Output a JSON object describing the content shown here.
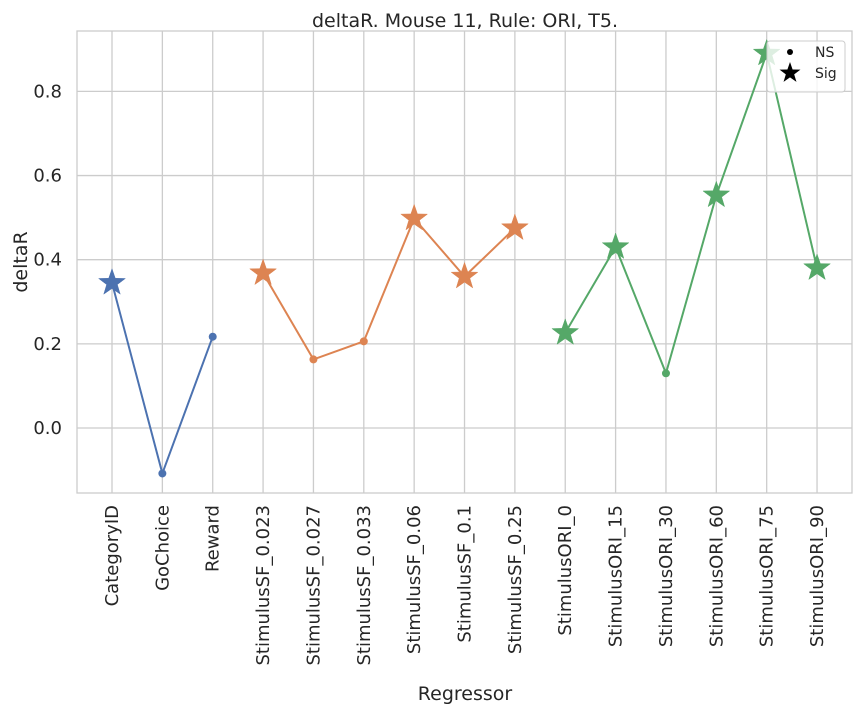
{
  "chart_data": {
    "type": "line",
    "title": "deltaR. Mouse 11, Rule: ORI, T5.",
    "xlabel": "Regressor",
    "ylabel": "deltaR",
    "ylim": [
      -0.155,
      0.935
    ],
    "yticks": [
      "0.0",
      "0.2",
      "0.4",
      "0.6",
      "0.8"
    ],
    "grid": true,
    "categories": [
      "CategoryID",
      "GoChoice",
      "Reward",
      "StimulusSF_0.023",
      "StimulusSF_0.027",
      "StimulusSF_0.033",
      "StimulusSF_0.06",
      "StimulusSF_0.1",
      "StimulusSF_0.25",
      "StimulusORI_0",
      "StimulusORI_15",
      "StimulusORI_30",
      "StimulusORI_60",
      "StimulusORI_75",
      "StimulusORI_90"
    ],
    "series": [
      {
        "color": "#4c72b0",
        "points": [
          {
            "x": "CategoryID",
            "y": 0.345,
            "sig": true
          },
          {
            "x": "GoChoice",
            "y": -0.108,
            "sig": false
          },
          {
            "x": "Reward",
            "y": 0.217,
            "sig": false
          }
        ]
      },
      {
        "color": "#dd8452",
        "points": [
          {
            "x": "StimulusSF_0.023",
            "y": 0.368,
            "sig": true
          },
          {
            "x": "StimulusSF_0.027",
            "y": 0.163,
            "sig": false
          },
          {
            "x": "StimulusSF_0.033",
            "y": 0.206,
            "sig": false
          },
          {
            "x": "StimulusSF_0.06",
            "y": 0.498,
            "sig": true
          },
          {
            "x": "StimulusSF_0.1",
            "y": 0.36,
            "sig": true
          },
          {
            "x": "StimulusSF_0.25",
            "y": 0.475,
            "sig": true
          }
        ]
      },
      {
        "color": "#55a868",
        "points": [
          {
            "x": "StimulusORI_0",
            "y": 0.226,
            "sig": true
          },
          {
            "x": "StimulusORI_15",
            "y": 0.43,
            "sig": true
          },
          {
            "x": "StimulusORI_30",
            "y": 0.13,
            "sig": false
          },
          {
            "x": "StimulusORI_60",
            "y": 0.553,
            "sig": true
          },
          {
            "x": "StimulusORI_75",
            "y": 0.89,
            "sig": true
          },
          {
            "x": "StimulusORI_90",
            "y": 0.38,
            "sig": true
          }
        ]
      }
    ],
    "legend": {
      "placement": "top-right",
      "entries": [
        {
          "label": "NS",
          "marker": "dot"
        },
        {
          "label": "Sig",
          "marker": "star"
        }
      ]
    }
  }
}
